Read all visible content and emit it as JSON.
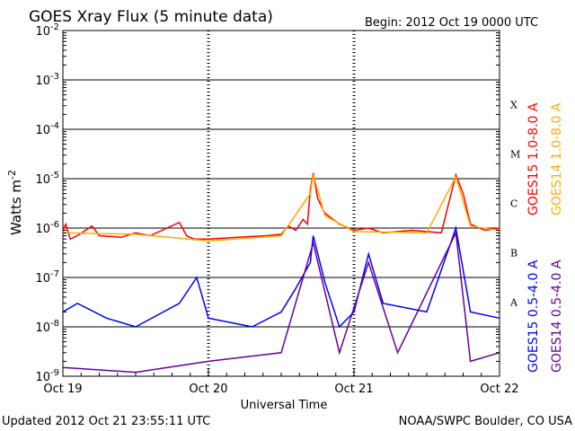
{
  "chart_data": {
    "type": "line",
    "title": "GOES Xray Flux (5 minute data)",
    "begin_label": "Begin:  2012 Oct 19 0000 UTC",
    "ylabel_main": "Watts m",
    "ylabel_exp": "-2",
    "xlabel": "Universal Time",
    "y_scale": "log",
    "ylim": [
      1e-09,
      0.01
    ],
    "y_ticks": [
      {
        "mant": "10",
        "exp": "-9",
        "value": 1e-09
      },
      {
        "mant": "10",
        "exp": "-8",
        "value": 1e-08
      },
      {
        "mant": "10",
        "exp": "-7",
        "value": 1e-07
      },
      {
        "mant": "10",
        "exp": "-6",
        "value": 1e-06
      },
      {
        "mant": "10",
        "exp": "-5",
        "value": 1e-05
      },
      {
        "mant": "10",
        "exp": "-4",
        "value": 0.0001
      },
      {
        "mant": "10",
        "exp": "-3",
        "value": 0.001
      },
      {
        "mant": "10",
        "exp": "-2",
        "value": 0.01
      }
    ],
    "x_ticks": [
      "Oct 19",
      "Oct 20",
      "Oct 21",
      "Oct 22"
    ],
    "xlim_days": [
      0,
      3
    ],
    "flare_classes": [
      {
        "label": "X",
        "value": 0.000316
      },
      {
        "label": "M",
        "value": 3.16e-05
      },
      {
        "label": "C",
        "value": 3.16e-06
      },
      {
        "label": "B",
        "value": 3.16e-07
      },
      {
        "label": "A",
        "value": 3.16e-08
      }
    ],
    "series": [
      {
        "name": "GOES15 1.0-8.0 A",
        "color": "#ff0000",
        "band": "long",
        "points": [
          [
            0,
            9e-07
          ],
          [
            0.02,
            1.2e-06
          ],
          [
            0.05,
            6e-07
          ],
          [
            0.1,
            7e-07
          ],
          [
            0.2,
            1.1e-06
          ],
          [
            0.25,
            7e-07
          ],
          [
            0.4,
            6.5e-07
          ],
          [
            0.5,
            8e-07
          ],
          [
            0.6,
            7e-07
          ],
          [
            0.8,
            1.3e-06
          ],
          [
            0.85,
            7e-07
          ],
          [
            0.9,
            6e-07
          ],
          [
            1.0,
            6e-07
          ],
          [
            1.2,
            6.5e-07
          ],
          [
            1.4,
            7e-07
          ],
          [
            1.5,
            7.5e-07
          ],
          [
            1.55,
            1.1e-06
          ],
          [
            1.6,
            9e-07
          ],
          [
            1.65,
            1.5e-06
          ],
          [
            1.68,
            1.2e-06
          ],
          [
            1.7,
            6e-06
          ],
          [
            1.72,
            1.3e-05
          ],
          [
            1.75,
            4e-06
          ],
          [
            1.8,
            2e-06
          ],
          [
            1.9,
            1.2e-06
          ],
          [
            2.0,
            9e-07
          ],
          [
            2.1,
            1e-06
          ],
          [
            2.2,
            8e-07
          ],
          [
            2.4,
            9e-07
          ],
          [
            2.6,
            8e-07
          ],
          [
            2.7,
            1.2e-05
          ],
          [
            2.75,
            5e-06
          ],
          [
            2.8,
            1.2e-06
          ],
          [
            2.9,
            9e-07
          ],
          [
            3.0,
            1e-06
          ]
        ]
      },
      {
        "name": "GOES14 1.0-8.0 A",
        "color": "#ffaa00",
        "band": "long",
        "points": [
          [
            0,
            8e-07
          ],
          [
            0.5,
            7.5e-07
          ],
          [
            1.0,
            5.5e-07
          ],
          [
            1.5,
            7e-07
          ],
          [
            1.7,
            5e-06
          ],
          [
            1.72,
            1.2e-05
          ],
          [
            1.8,
            1.8e-06
          ],
          [
            2.0,
            8.5e-07
          ],
          [
            2.5,
            8e-07
          ],
          [
            2.7,
            1.1e-05
          ],
          [
            2.8,
            1.1e-06
          ],
          [
            3.0,
            9e-07
          ]
        ]
      },
      {
        "name": "GOES15 0.5-4.0 A",
        "color": "#0000ff",
        "band": "short",
        "points": [
          [
            0,
            2e-08
          ],
          [
            0.1,
            3e-08
          ],
          [
            0.3,
            1.5e-08
          ],
          [
            0.5,
            1e-08
          ],
          [
            0.8,
            3e-08
          ],
          [
            0.92,
            1e-07
          ],
          [
            1.0,
            1.5e-08
          ],
          [
            1.3,
            1e-08
          ],
          [
            1.5,
            2e-08
          ],
          [
            1.6,
            6e-08
          ],
          [
            1.7,
            2e-07
          ],
          [
            1.72,
            7e-07
          ],
          [
            1.8,
            8e-08
          ],
          [
            1.9,
            1e-08
          ],
          [
            2.0,
            2e-08
          ],
          [
            2.1,
            3e-07
          ],
          [
            2.2,
            3e-08
          ],
          [
            2.5,
            2e-08
          ],
          [
            2.7,
            1e-06
          ],
          [
            2.8,
            2e-08
          ],
          [
            3.0,
            1.5e-08
          ]
        ]
      },
      {
        "name": "GOES14 0.5-4.0 A",
        "color": "#660099",
        "band": "short",
        "points": [
          [
            0,
            1.5e-09
          ],
          [
            0.5,
            1.2e-09
          ],
          [
            1.0,
            2e-09
          ],
          [
            1.5,
            3e-09
          ],
          [
            1.72,
            5e-07
          ],
          [
            1.9,
            3e-09
          ],
          [
            2.1,
            2e-07
          ],
          [
            2.3,
            3e-09
          ],
          [
            2.7,
            8e-07
          ],
          [
            2.8,
            2e-09
          ],
          [
            3.0,
            3e-09
          ]
        ]
      }
    ]
  },
  "footer": {
    "updated": "Updated 2012 Oct 21 23:55:11 UTC",
    "credit": "NOAA/SWPC Boulder, CO USA"
  }
}
